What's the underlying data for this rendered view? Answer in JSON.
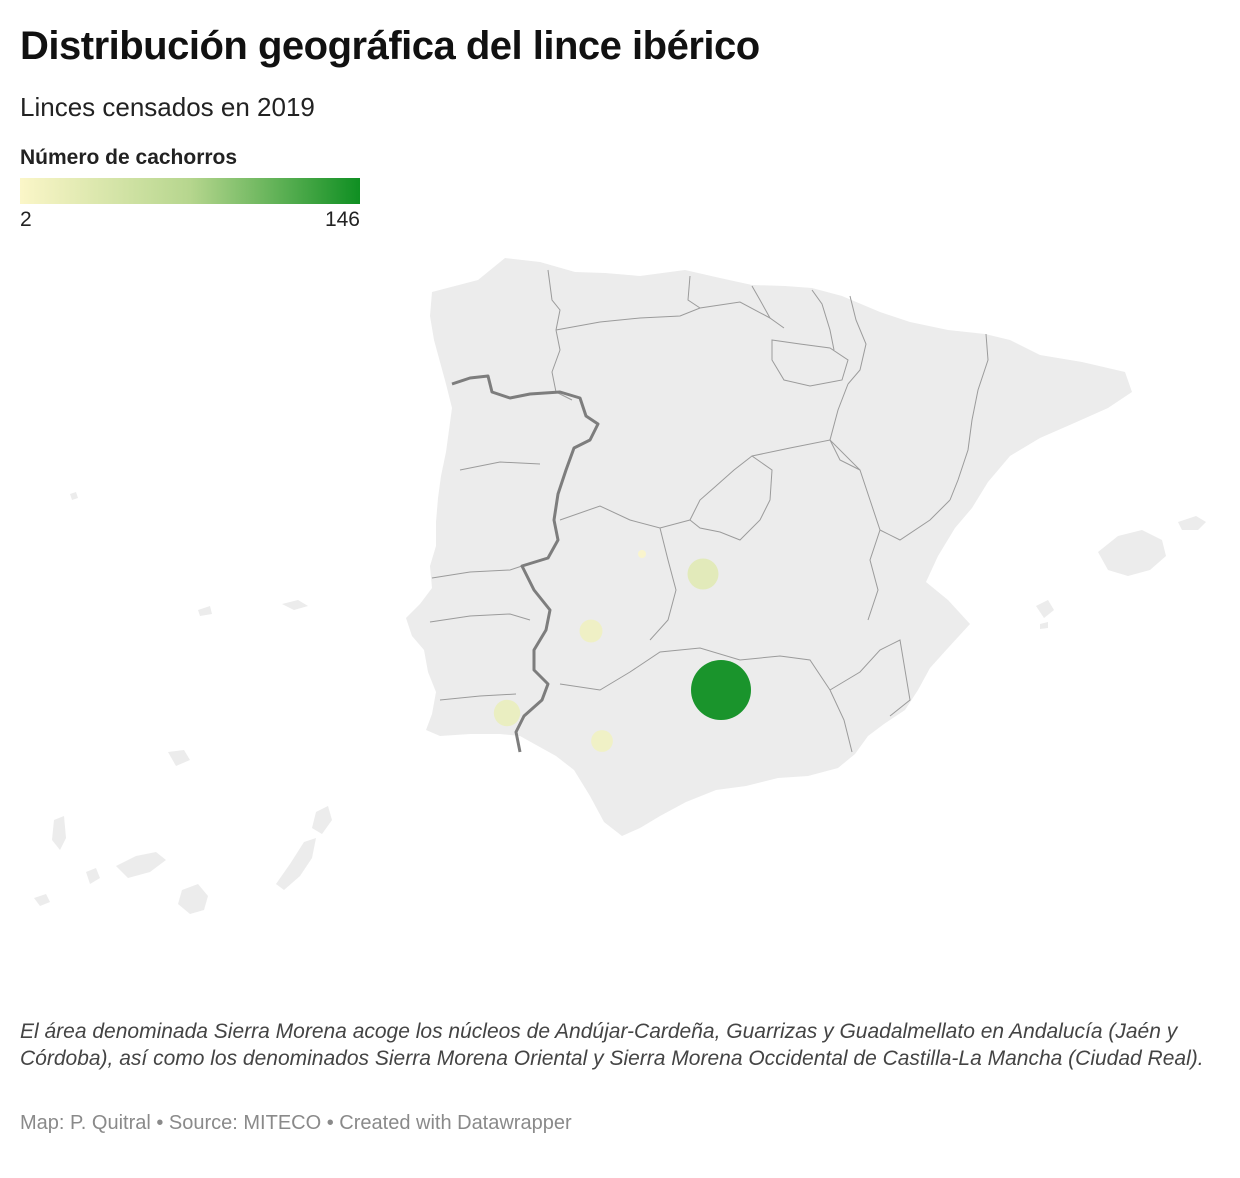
{
  "title": "Distribución geográfica del lince ibérico",
  "subtitle": "Linces censados en 2019",
  "legend": {
    "title": "Número de cachorros",
    "min_label": "2",
    "max_label": "146",
    "min": 2,
    "max": 146,
    "color_low": "#fbf6c8",
    "color_mid": "#b6d68e",
    "color_high": "#0f8f22"
  },
  "colors": {
    "land": "#ececec",
    "region_border": "#9b9b9b",
    "country_border": "#7d7d7d"
  },
  "points": [
    {
      "value": 146
    },
    {
      "value": 30
    },
    {
      "value": 20
    },
    {
      "value": 14
    },
    {
      "value": 12
    },
    {
      "value": 2
    }
  ],
  "note": "El área denominada Sierra Morena acoge los núcleos de Andújar-Cardeña, Guarrizas y Guadalmellato en Andalucía (Jaén y Córdoba), así como los denominados Sierra Morena Oriental y Sierra Morena Occidental de Castilla-La Mancha (Ciudad Real).",
  "footer": "Map: P. Quitral • Source: MITECO • Created with Datawrapper"
}
